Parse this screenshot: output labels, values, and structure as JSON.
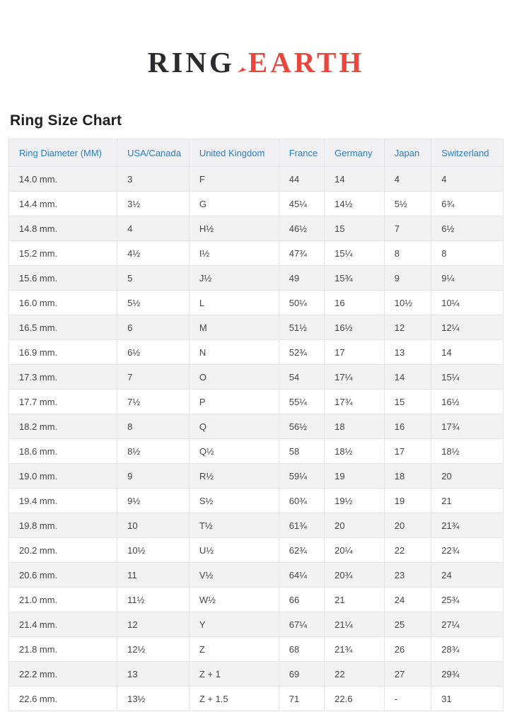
{
  "logo": {
    "text_primary": "RING",
    "text_secondary": "EARTH",
    "primary_color": "#2b2a2e",
    "secondary_color": "#e8463e",
    "swoosh_icon": "red-flourish-icon"
  },
  "page": {
    "title": "Ring Size Chart"
  },
  "colors": {
    "header_text": "#2d7dbf",
    "row_alt_bg": "#f2f2f2",
    "border": "#e4e4e8",
    "cell_text": "#43434a"
  },
  "table": {
    "columns": [
      "Ring Diameter (MM)",
      "USA/Canada",
      "United Kingdom",
      "France",
      "Germany",
      "Japan",
      "Switzerland"
    ],
    "rows": [
      [
        "14.0 mm.",
        "3",
        "F",
        "44",
        "14",
        "4",
        "4"
      ],
      [
        "14.4 mm.",
        "3½",
        "G",
        "45¼",
        "14½",
        "5½",
        "6¾"
      ],
      [
        "14.8 mm.",
        "4",
        "H½",
        "46½",
        "15",
        "7",
        "6½"
      ],
      [
        "15.2 mm.",
        "4½",
        "I½",
        "47¾",
        "15¼",
        "8",
        "8"
      ],
      [
        "15.6 mm.",
        "5",
        "J½",
        "49",
        "15¾",
        "9",
        "9¼"
      ],
      [
        "16.0 mm.",
        "5½",
        "L",
        "50¼",
        "16",
        "10½",
        "10¼"
      ],
      [
        "16.5 mm.",
        "6",
        "M",
        "51½",
        "16½",
        "12",
        "12¼"
      ],
      [
        "16.9 mm.",
        "6½",
        "N",
        "52¾",
        "17",
        "13",
        "14"
      ],
      [
        "17.3 mm.",
        "7",
        "O",
        "54",
        "17¼",
        "14",
        "15¼"
      ],
      [
        "17.7 mm.",
        "7½",
        "P",
        "55¼",
        "17¾",
        "15",
        "16½"
      ],
      [
        "18.2 mm.",
        "8",
        "Q",
        "56½",
        "18",
        "16",
        "17¾"
      ],
      [
        "18.6 mm.",
        "8½",
        "Q½",
        "58",
        "18½",
        "17",
        "18½"
      ],
      [
        "19.0 mm.",
        "9",
        "R½",
        "59¼",
        "19",
        "18",
        "20"
      ],
      [
        "19.4 mm.",
        "9½",
        "S½",
        "60¾",
        "19½",
        "19",
        "21"
      ],
      [
        "19.8 mm.",
        "10",
        "T½",
        "61¾",
        "20",
        "20",
        "21¾"
      ],
      [
        "20.2 mm.",
        "10½",
        "U½",
        "62¾",
        "20¼",
        "22",
        "22¾"
      ],
      [
        "20.6 mm.",
        "11",
        "V½",
        "64¼",
        "20¾",
        "23",
        "24"
      ],
      [
        "21.0 mm.",
        "11½",
        "W½",
        "66",
        "21",
        "24",
        "25¾"
      ],
      [
        "21.4 mm.",
        "12",
        "Y",
        "67¼",
        "21¼",
        "25",
        "27¼"
      ],
      [
        "21.8 mm.",
        "12½",
        "Z",
        "68",
        "21¾",
        "26",
        "28¾"
      ],
      [
        "22.2 mm.",
        "13",
        "Z + 1",
        "69",
        "22",
        "27",
        "29¾"
      ],
      [
        "22.6 mm.",
        "13½",
        "Z + 1.5",
        "71",
        "22.6",
        "-",
        "31"
      ]
    ]
  }
}
